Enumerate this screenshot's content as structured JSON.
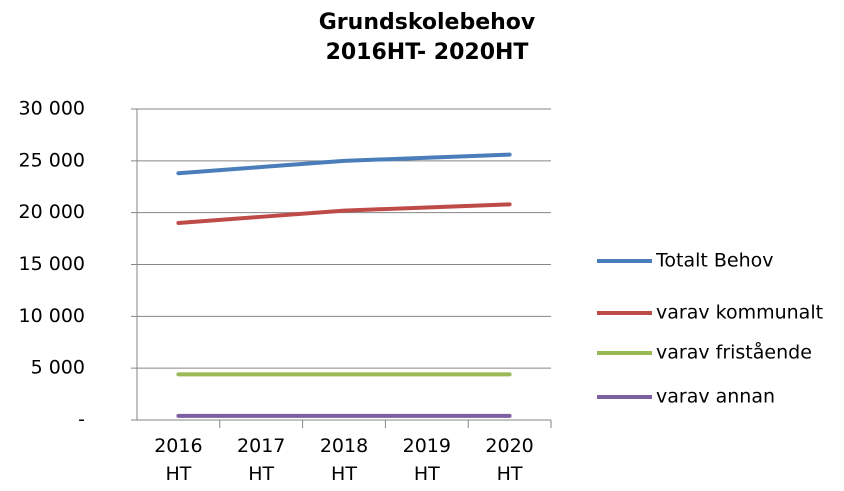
{
  "chart_data": {
    "type": "line",
    "title": "Grundskolebehov\n2016HT- 2020HT",
    "categories": [
      "2016\nHT",
      "2017\nHT",
      "2018\nHT",
      "2019\nHT",
      "2020\nHT"
    ],
    "series": [
      {
        "name": "Totalt Behov",
        "color": "#4a7ebb",
        "values": [
          23800,
          24400,
          25000,
          25300,
          25600
        ]
      },
      {
        "name": "varav kommunalt",
        "color": "#be4b48",
        "values": [
          19000,
          19600,
          20200,
          20500,
          20800
        ]
      },
      {
        "name": "varav fristående",
        "color": "#98b954",
        "values": [
          4400,
          4400,
          4400,
          4400,
          4400
        ]
      },
      {
        "name": "varav annan",
        "color": "#7d60a0",
        "values": [
          400,
          400,
          400,
          400,
          400
        ]
      }
    ],
    "ylim": [
      0,
      30000
    ],
    "yticks": [
      {
        "value": 0,
        "label": "-"
      },
      {
        "value": 5000,
        "label": "5 000"
      },
      {
        "value": 10000,
        "label": "10 000"
      },
      {
        "value": 15000,
        "label": "15 000"
      },
      {
        "value": 20000,
        "label": "20 000"
      },
      {
        "value": 25000,
        "label": "25 000"
      },
      {
        "value": 30000,
        "label": "30 000"
      }
    ],
    "grid": true,
    "legend": "right"
  }
}
